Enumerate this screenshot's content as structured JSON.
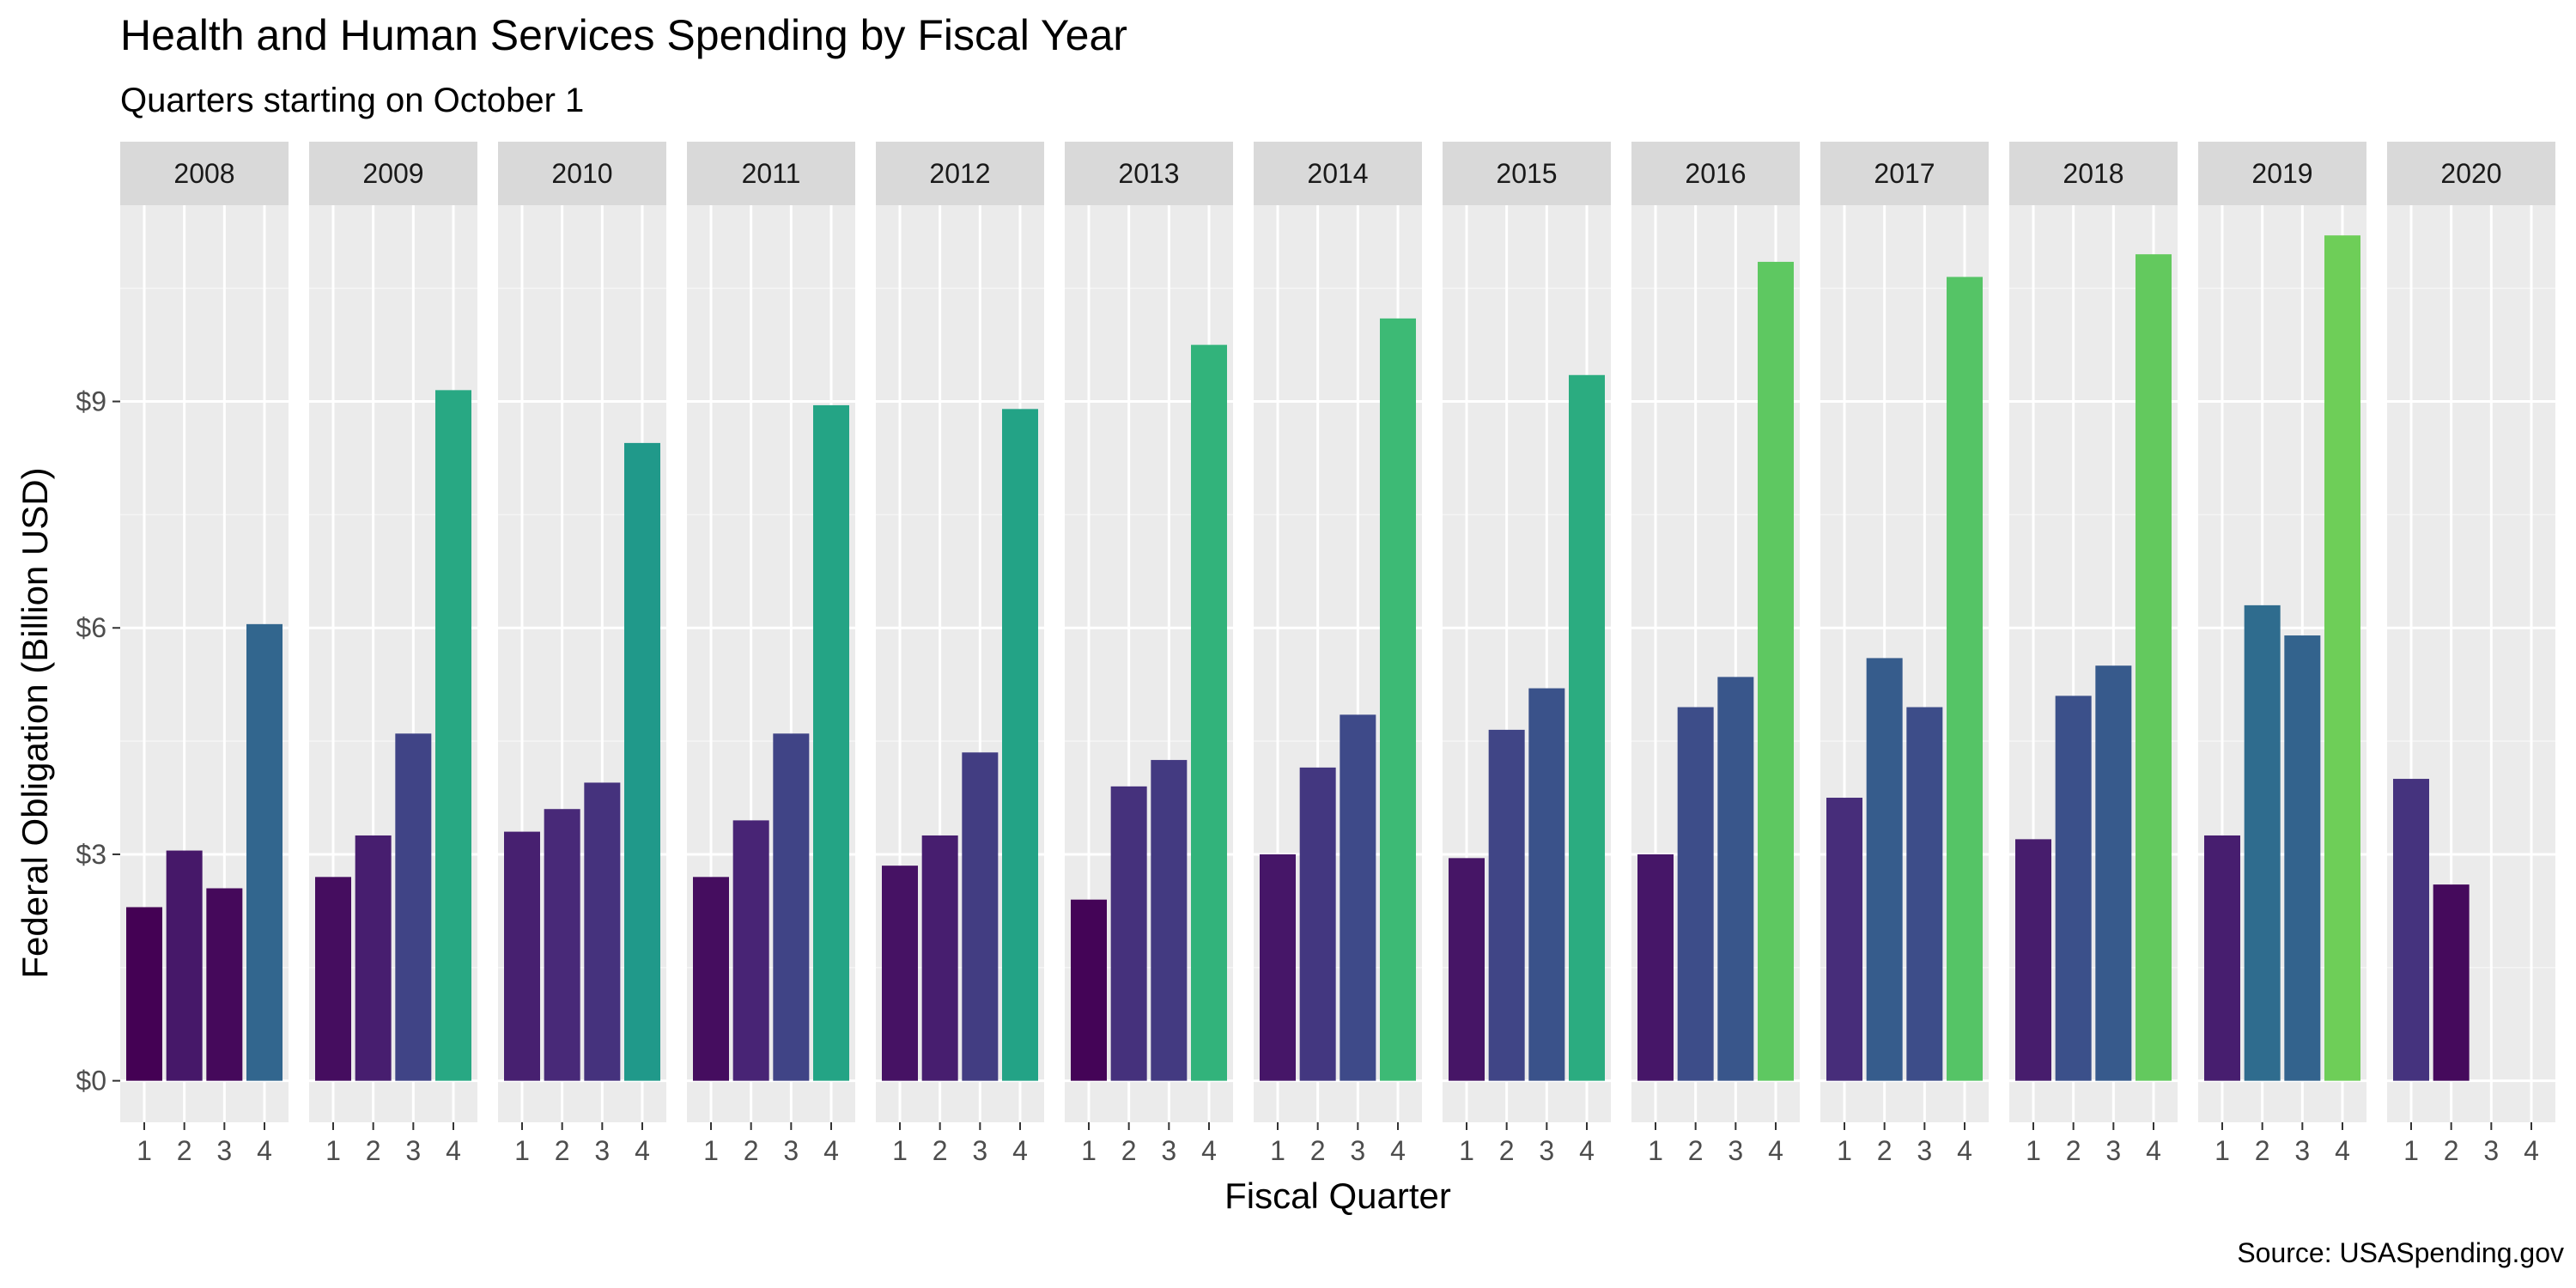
{
  "chart_data": {
    "type": "bar",
    "title": "Health and Human Services Spending by Fiscal Year",
    "subtitle": "Quarters starting on October 1",
    "xlabel": "Fiscal Quarter",
    "ylabel": "Federal Obligation (Billion USD)",
    "caption": "Source: USASpending.gov",
    "x_ticks": [
      "1",
      "2",
      "3",
      "4"
    ],
    "y_ticks": [
      {
        "value": 0,
        "label": "$0"
      },
      {
        "value": 3,
        "label": "$3"
      },
      {
        "value": 6,
        "label": "$6"
      },
      {
        "value": 9,
        "label": "$9"
      }
    ],
    "ylim": [
      -0.55,
      11.6
    ],
    "grid": true,
    "facets": [
      {
        "year": "2008",
        "values": [
          2.3,
          3.05,
          2.55,
          6.05
        ]
      },
      {
        "year": "2009",
        "values": [
          2.7,
          3.25,
          4.6,
          9.15
        ]
      },
      {
        "year": "2010",
        "values": [
          3.3,
          3.6,
          3.95,
          8.45
        ]
      },
      {
        "year": "2011",
        "values": [
          2.7,
          3.45,
          4.6,
          8.95
        ]
      },
      {
        "year": "2012",
        "values": [
          2.85,
          3.25,
          4.35,
          8.9
        ]
      },
      {
        "year": "2013",
        "values": [
          2.4,
          3.9,
          4.25,
          9.75
        ]
      },
      {
        "year": "2014",
        "values": [
          3.0,
          4.15,
          4.85,
          10.1
        ]
      },
      {
        "year": "2015",
        "values": [
          2.95,
          4.65,
          5.2,
          9.35
        ]
      },
      {
        "year": "2016",
        "values": [
          3.0,
          4.95,
          5.35,
          10.85
        ]
      },
      {
        "year": "2017",
        "values": [
          3.75,
          5.6,
          4.95,
          10.65
        ]
      },
      {
        "year": "2018",
        "values": [
          3.2,
          5.1,
          5.5,
          10.95
        ]
      },
      {
        "year": "2019",
        "values": [
          3.25,
          6.3,
          5.9,
          11.2
        ]
      },
      {
        "year": "2020",
        "values": [
          4.0,
          2.6,
          null,
          null
        ]
      }
    ],
    "color_scale": {
      "name": "viridis",
      "stops": [
        "#440154",
        "#482878",
        "#3e4a89",
        "#31688e",
        "#26828e",
        "#1f9e89",
        "#35b779",
        "#6ece58"
      ],
      "domain": [
        2.3,
        11.2
      ]
    }
  }
}
